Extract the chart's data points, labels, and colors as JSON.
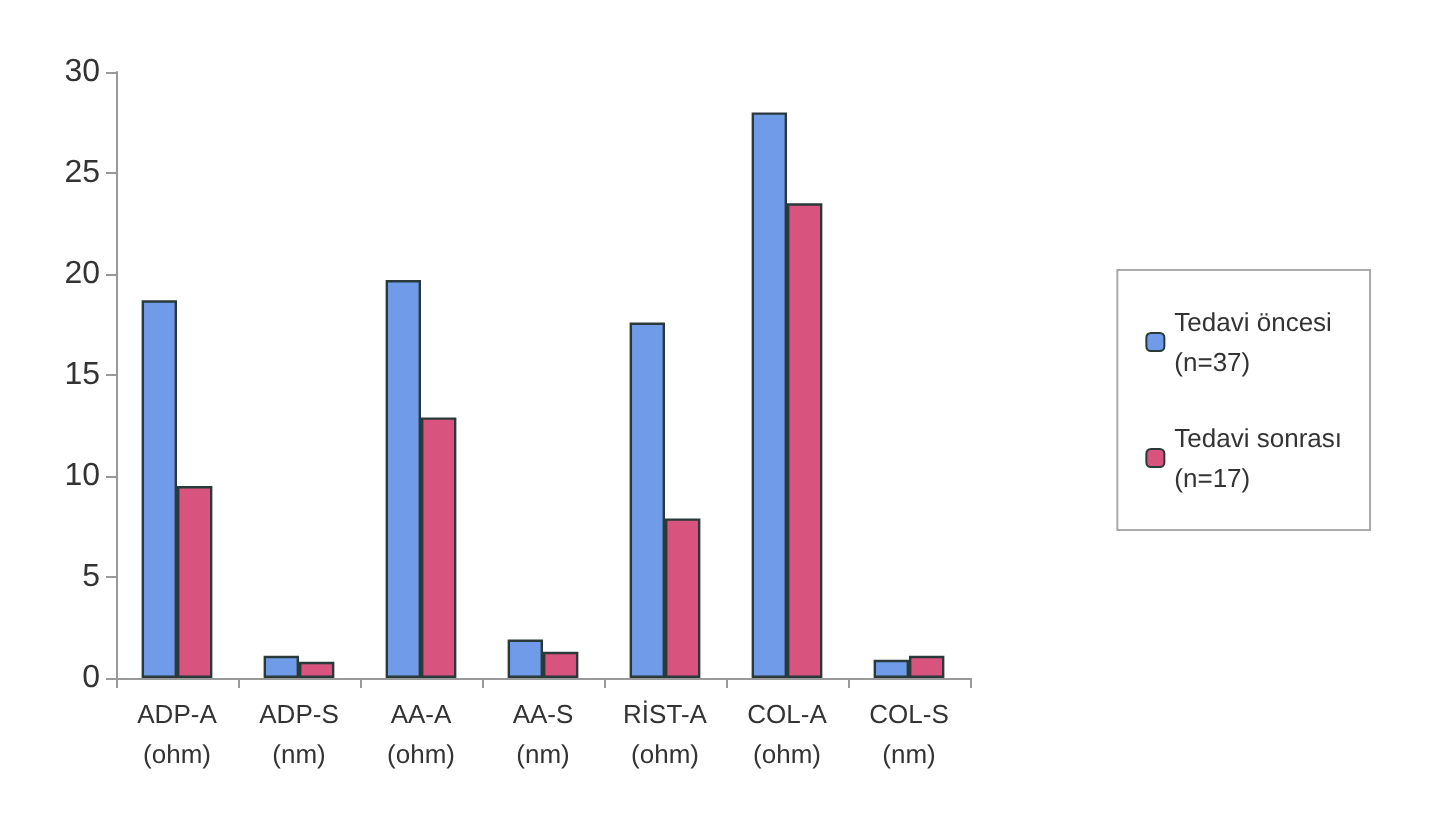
{
  "chart_data": {
    "type": "bar",
    "categories": [
      "ADP-A\n(ohm)",
      "ADP-S\n(nm)",
      "AA-A\n(ohm)",
      "AA-S\n(nm)",
      "RİST-A\n(ohm)",
      "COL-A\n(ohm)",
      "COL-S\n(nm)"
    ],
    "series": [
      {
        "name": "Tedavi öncesi\n(n=37)",
        "color": "#6f9be8",
        "values": [
          18.7,
          1.1,
          19.7,
          1.9,
          17.6,
          28.0,
          0.9
        ]
      },
      {
        "name": "Tedavi sonrası\n(n=17)",
        "color": "#d9537f",
        "values": [
          9.5,
          0.8,
          12.9,
          1.3,
          7.9,
          23.5,
          1.1
        ]
      }
    ],
    "ylim": [
      0,
      30
    ],
    "yticks": [
      0,
      5,
      10,
      15,
      20,
      25,
      30
    ],
    "grid": false,
    "legend": "right"
  }
}
